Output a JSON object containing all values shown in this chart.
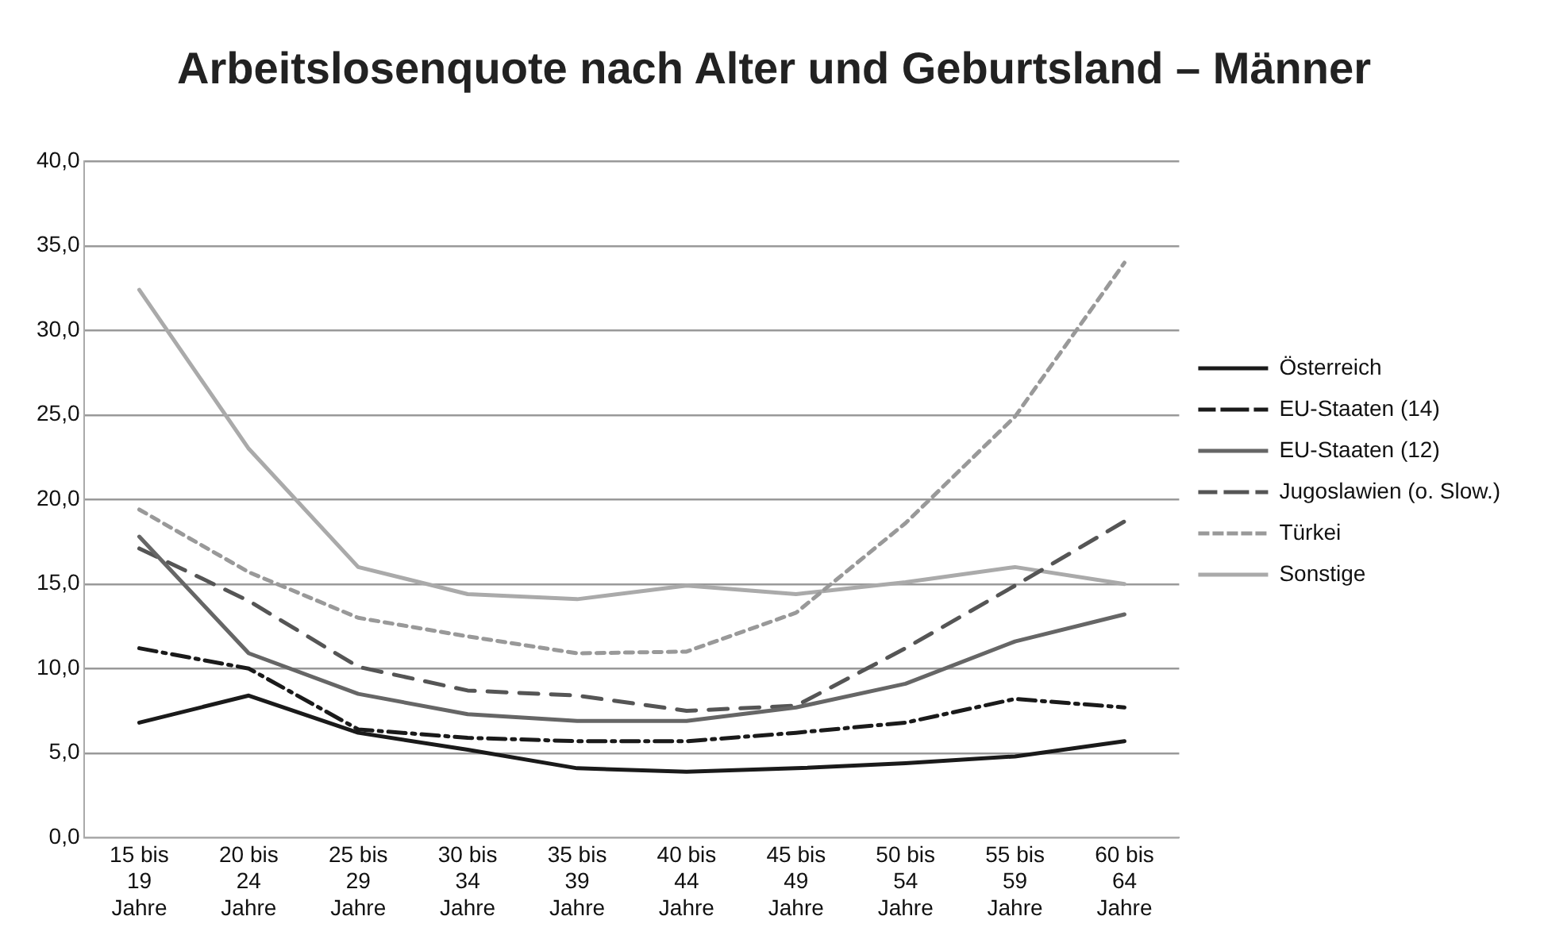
{
  "chart_data": {
    "type": "line",
    "title": "Arbeitslosenquote nach Alter und Geburtsland – Männer",
    "categories": [
      "15 bis\n19\nJahre",
      "20 bis\n24\nJahre",
      "25 bis\n29\nJahre",
      "30 bis\n34\nJahre",
      "35 bis\n39\nJahre",
      "40 bis\n44\nJahre",
      "45 bis\n49\nJahre",
      "50 bis\n54\nJahre",
      "55 bis\n59\nJahre",
      "60 bis\n64\nJahre"
    ],
    "series": [
      {
        "name": "Österreich",
        "color": "#1a1a1a",
        "line_style": "solid",
        "values": [
          6.8,
          8.4,
          6.2,
          5.2,
          4.1,
          3.9,
          4.1,
          4.4,
          4.8,
          5.7
        ]
      },
      {
        "name": "EU-Staaten (14)",
        "color": "#1a1a1a",
        "line_style": "dashdot",
        "values": [
          11.2,
          10.0,
          6.4,
          5.9,
          5.7,
          5.7,
          6.2,
          6.8,
          8.2,
          7.7
        ]
      },
      {
        "name": "EU-Staaten (12)",
        "color": "#666666",
        "line_style": "solid",
        "values": [
          17.8,
          10.9,
          8.5,
          7.3,
          6.9,
          6.9,
          7.7,
          9.1,
          11.6,
          13.2
        ]
      },
      {
        "name": "Jugoslawien (o. Slow.)",
        "color": "#555555",
        "line_style": "dashed",
        "values": [
          17.1,
          14.0,
          10.1,
          8.7,
          8.4,
          7.5,
          7.8,
          11.2,
          14.9,
          18.7
        ]
      },
      {
        "name": "Türkei",
        "color": "#999999",
        "line_style": "dotted",
        "values": [
          19.4,
          15.7,
          13.0,
          11.9,
          10.9,
          11.0,
          13.3,
          18.6,
          24.9,
          34.0
        ]
      },
      {
        "name": "Sonstige",
        "color": "#aaaaaa",
        "line_style": "solid",
        "values": [
          32.4,
          23.0,
          16.0,
          14.4,
          14.1,
          14.9,
          14.4,
          15.1,
          16.0,
          15.0
        ]
      }
    ],
    "ylim": [
      0,
      40
    ],
    "yticks": [
      {
        "value": 0,
        "label": "0,0"
      },
      {
        "value": 5,
        "label": "5,0"
      },
      {
        "value": 10,
        "label": "10,0"
      },
      {
        "value": 15,
        "label": "15,0"
      },
      {
        "value": 20,
        "label": "20,0"
      },
      {
        "value": 25,
        "label": "25,0"
      },
      {
        "value": 30,
        "label": "30,0"
      },
      {
        "value": 35,
        "label": "35,0"
      },
      {
        "value": 40,
        "label": "40,0"
      }
    ],
    "grid": "y",
    "legend": "right",
    "marker": "none"
  }
}
